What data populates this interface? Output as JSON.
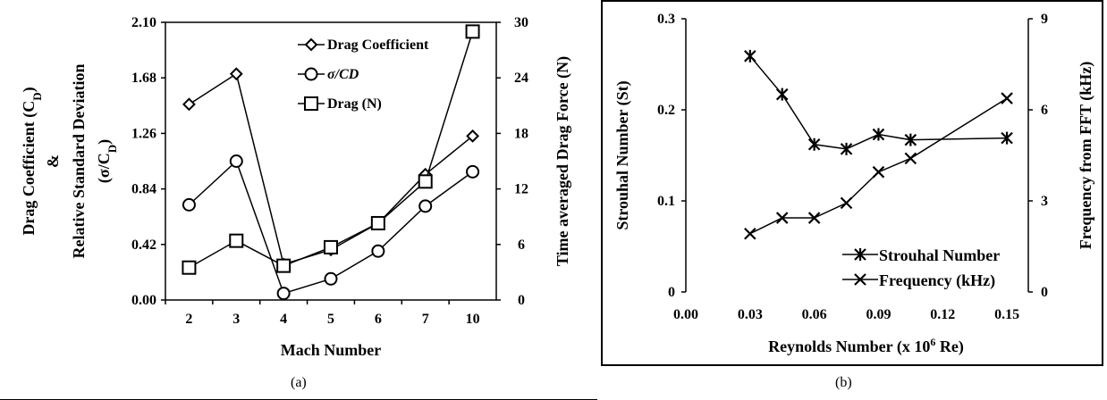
{
  "chart_data": [
    {
      "id": "a",
      "type": "line",
      "caption": "(a)",
      "categories": [
        "2",
        "3",
        "4",
        "5",
        "6",
        "7",
        "10"
      ],
      "xlabel": "Mach Number",
      "ylabel_left_lines": [
        "Drag Coefficient (C_D)",
        "&",
        "Relative Standard Deviation",
        "(σ/C_D)"
      ],
      "ylabel_right": "Time averaged Drag Force (N)",
      "yticks_left": [
        "0.00",
        "0.42",
        "0.84",
        "1.26",
        "1.68",
        "2.10"
      ],
      "yticks_right": [
        "0",
        "6",
        "12",
        "18",
        "24",
        "30"
      ],
      "ylim_left": [
        0,
        2.1
      ],
      "ylim_right": [
        0,
        30
      ],
      "legend_position": "top-right",
      "series": [
        {
          "name": "Drag Coefficient",
          "axis": "left",
          "marker": "diamond",
          "values": [
            1.48,
            1.71,
            0.27,
            0.38,
            0.58,
            0.95,
            1.24
          ]
        },
        {
          "name": "σ/CD",
          "axis": "left",
          "marker": "circle",
          "values": [
            0.72,
            1.05,
            0.05,
            0.16,
            0.37,
            0.71,
            0.97
          ]
        },
        {
          "name": "Drag (N)",
          "axis": "right",
          "marker": "square",
          "values": [
            3.5,
            6.4,
            3.7,
            5.7,
            8.3,
            12.8,
            29.0
          ]
        }
      ]
    },
    {
      "id": "b",
      "type": "line",
      "caption": "(b)",
      "xlabel": "Reynolds Number (x 10⁶ Re)",
      "ylabel_left": "Strouhal Number (St)",
      "ylabel_right": "Frequency from FFT (kHz)",
      "xticks": [
        "0.00",
        "0.03",
        "0.06",
        "0.09",
        "0.12",
        "0.15"
      ],
      "yticks_left": [
        "0",
        "0.1",
        "0.2",
        "0.3"
      ],
      "yticks_right": [
        "0",
        "3",
        "6",
        "9"
      ],
      "xlim": [
        0,
        0.16
      ],
      "ylim_left": [
        0,
        0.3
      ],
      "ylim_right": [
        0,
        9
      ],
      "legend_position": "bottom-right",
      "series": [
        {
          "name": "Strouhal Number",
          "axis": "left",
          "marker": "star",
          "x": [
            0.03,
            0.045,
            0.06,
            0.075,
            0.09,
            0.105,
            0.15
          ],
          "values": [
            0.259,
            0.217,
            0.162,
            0.157,
            0.173,
            0.167,
            0.169
          ]
        },
        {
          "name": "Frequency (kHz)",
          "axis": "right",
          "marker": "x",
          "x": [
            0.03,
            0.045,
            0.06,
            0.075,
            0.09,
            0.105,
            0.15
          ],
          "values": [
            1.92,
            2.44,
            2.44,
            2.93,
            3.95,
            4.4,
            6.38
          ]
        }
      ]
    }
  ]
}
